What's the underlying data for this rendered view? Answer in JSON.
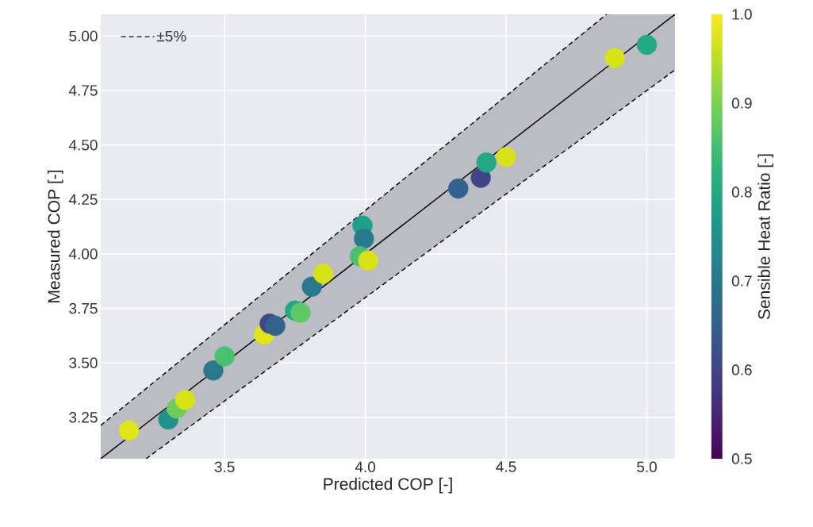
{
  "chart_data": {
    "type": "scatter",
    "xlabel": "Predicted COP [-]",
    "ylabel": "Measured COP [-]",
    "clabel": "Sensible Heat Ratio [-]",
    "xlim": [
      3.06,
      5.1
    ],
    "ylim": [
      3.06,
      5.1
    ],
    "xticks": [
      3.5,
      {
        "value": 4.0,
        "label": "4.0"
      },
      4.5,
      {
        "value": 5.0,
        "label": "5.0"
      }
    ],
    "yticks": [
      3.25,
      {
        "value": 3.5,
        "label": "3.50"
      },
      3.75,
      {
        "value": 4.0,
        "label": "4.00"
      },
      4.25,
      {
        "value": 4.5,
        "label": "4.50"
      },
      4.75,
      {
        "value": 5.0,
        "label": "5.00"
      }
    ],
    "clim": [
      0.5,
      1.0
    ],
    "cticks": [
      0.5,
      0.6,
      0.7,
      0.8,
      0.9,
      {
        "value": 1.0,
        "label": "1.0"
      }
    ],
    "grid": true,
    "legend": "top left",
    "series": [
      {
        "type": "line",
        "color": "#000000",
        "line_style": "solid",
        "x": [
          3.06,
          3.221,
          4.857,
          5.1
        ],
        "values": [
          3.06,
          3.221,
          4.857,
          5.1
        ],
        "lower": [
          3.06,
          3.06,
          4.614,
          4.845
        ],
        "upper": [
          3.213,
          3.382,
          5.1,
          5.1
        ]
      },
      {
        "type": "line",
        "name": "±5%",
        "color": "#000000",
        "line_style": "dashed",
        "x": [
          3.06,
          4.857
        ],
        "values": [
          3.213,
          5.1
        ]
      },
      {
        "type": "line",
        "color": "#000000",
        "line_style": "dashed",
        "x": [
          3.221,
          5.1
        ],
        "values": [
          3.06,
          4.845
        ]
      },
      {
        "type": "scatter",
        "marker": "circle",
        "colors": [
          "#e2e418",
          "#21918c",
          "#6ccd5a",
          "#d8e219",
          "#2a788e",
          "#4ac16d",
          "#e2e418",
          "#3f4788",
          "#33638d",
          "#22a884",
          "#5ec962",
          "#2a788e",
          "#d8e219",
          "#1fa088",
          "#2a788e",
          "#4ac16d",
          "#d8e219",
          "#33638d",
          "#414487",
          "#22a884",
          "#d8e219",
          "#d8e219",
          "#22a884"
        ],
        "x": [
          3.16,
          3.3,
          3.33,
          3.36,
          3.46,
          3.5,
          3.64,
          3.66,
          3.68,
          3.75,
          3.77,
          3.81,
          3.85,
          3.99,
          3.995,
          3.98,
          4.01,
          4.33,
          4.41,
          4.43,
          4.5,
          4.886,
          5.0
        ],
        "values": [
          3.19,
          3.24,
          3.29,
          3.33,
          3.465,
          3.53,
          3.63,
          3.68,
          3.67,
          3.74,
          3.73,
          3.85,
          3.91,
          4.13,
          4.07,
          3.99,
          3.97,
          4.3,
          4.35,
          4.42,
          4.445,
          4.9,
          4.96
        ],
        "cvalues": [
          0.98,
          0.75,
          0.89,
          0.97,
          0.7,
          0.85,
          0.98,
          0.61,
          0.66,
          0.8,
          0.87,
          0.7,
          0.97,
          0.78,
          0.7,
          0.85,
          0.97,
          0.66,
          0.6,
          0.8,
          0.97,
          0.97,
          0.8
        ]
      }
    ]
  }
}
